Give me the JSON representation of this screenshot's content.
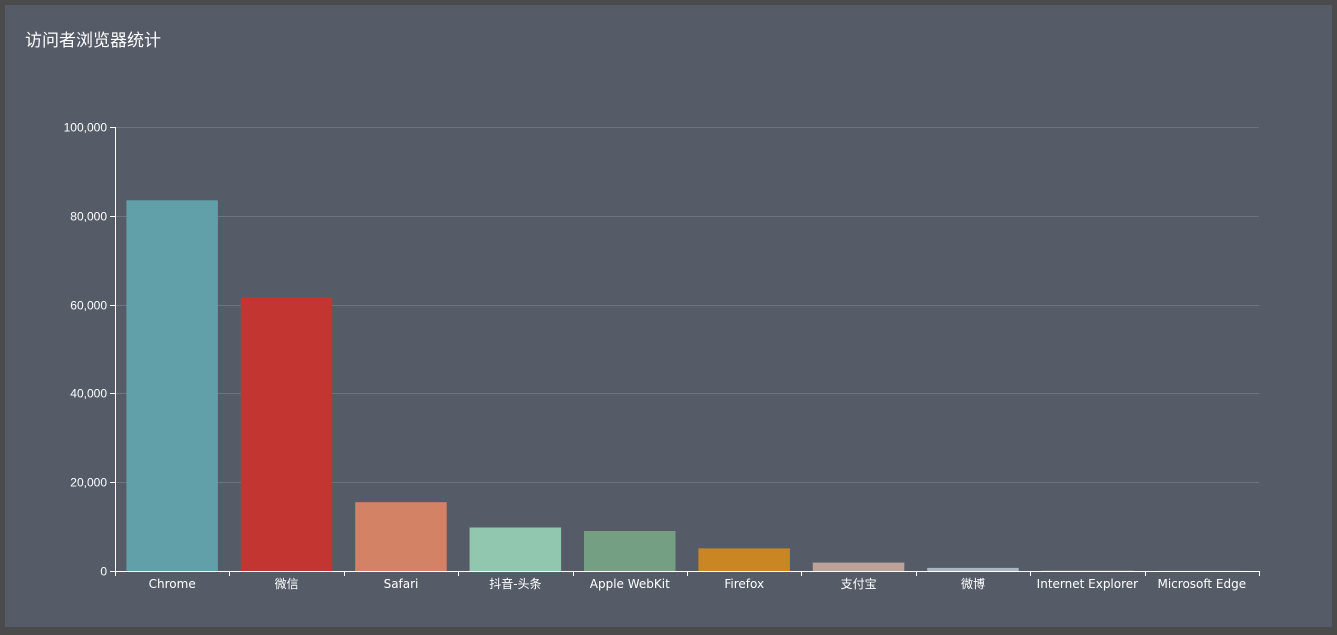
{
  "chart_data": {
    "type": "bar",
    "title": "访问者浏览器统计",
    "categories": [
      "Chrome",
      "微信",
      "Safari",
      "抖音-头条",
      "Apple WebKit",
      "Firefox",
      "支付宝",
      "微博",
      "Internet Explorer",
      "Microsoft Edge"
    ],
    "values": [
      83500,
      61700,
      15500,
      9800,
      9000,
      5100,
      1900,
      700,
      200,
      100
    ],
    "ylim": [
      0,
      100000
    ],
    "yticks": [
      0,
      20000,
      40000,
      60000,
      80000,
      100000
    ],
    "ytick_labels": [
      "0",
      "20,000",
      "40,000",
      "60,000",
      "80,000",
      "100,000"
    ],
    "grid": true,
    "colors": [
      "#61a0a8",
      "#c23531",
      "#d48265",
      "#91c7ae",
      "#749f83",
      "#ca8622",
      "#bda29a",
      "#a9b4c4",
      "#6e7074",
      "#546570"
    ],
    "background": "#555c68",
    "axis_color": "#ffffff",
    "grid_color": "#6c7381"
  }
}
